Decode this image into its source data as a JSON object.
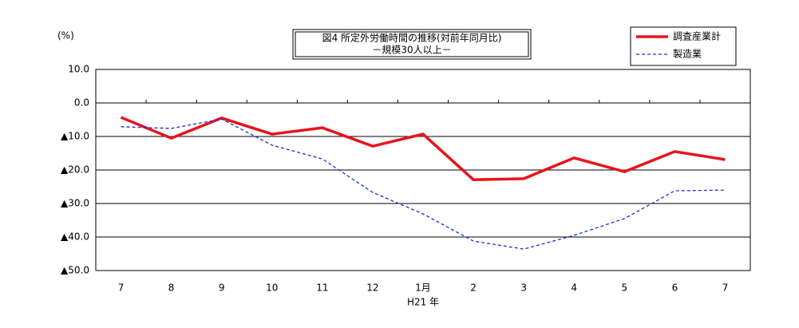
{
  "chart_data": {
    "type": "line",
    "title": "図4 所定外労働時間の推移(対前年同月比)",
    "subtitle": "－規模30人以上－",
    "unit_label": "(%)",
    "x_label": "H21 年",
    "categories": [
      "7",
      "8",
      "9",
      "10",
      "11",
      "12",
      "1月",
      "2",
      "3",
      "4",
      "5",
      "6",
      "7"
    ],
    "series": [
      {
        "name": "調査産業計",
        "color": "#e8141c",
        "dash": false,
        "values": [
          -4.3,
          -10.5,
          -4.5,
          -9.3,
          -7.4,
          -12.9,
          -9.3,
          -22.9,
          -22.6,
          -16.4,
          -20.5,
          -14.5,
          -16.9
        ]
      },
      {
        "name": "製造業",
        "color": "#1c2ee0",
        "dash": true,
        "values": [
          -7.1,
          -7.6,
          -4.8,
          -12.6,
          -16.7,
          -26.7,
          -33.1,
          -41.2,
          -43.6,
          -39.5,
          -34.5,
          -26.2,
          -26.0
        ]
      }
    ],
    "ylim": [
      -50,
      10
    ],
    "yticks": [
      {
        "value": 10,
        "label": "10.0"
      },
      {
        "value": 0,
        "label": "0.0"
      },
      {
        "value": -10,
        "label": "▲10.0"
      },
      {
        "value": -20,
        "label": "▲20.0"
      },
      {
        "value": -30,
        "label": "▲30.0"
      },
      {
        "value": -40,
        "label": "▲40.0"
      },
      {
        "value": -50,
        "label": "▲50.0"
      }
    ],
    "grid": true,
    "legend": "top-right"
  }
}
